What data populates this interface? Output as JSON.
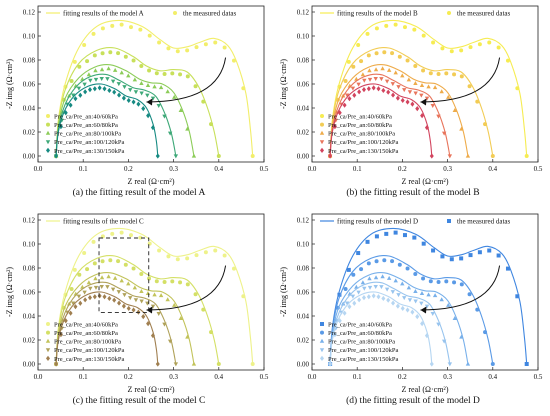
{
  "legend_labels": [
    "Pre_ca/Pre_an:40/60kPa",
    "Pre_ca/Pre_an:60/80kPa",
    "Pre_ca/Pre_an:80/100kPa",
    "Pre_ca/Pre_an:100/120kPa",
    "Pre_ca/Pre_an:130/150kPa"
  ],
  "chart_data": [
    {
      "type": "scatter",
      "caption": "(a) the fitting result of the model A",
      "fit_label": "fitting results of the model A",
      "meas_label": "the measured datas",
      "xlabel": "Z real (Ω·cm²)",
      "ylabel": "-Z img (Ω·cm²)",
      "xlim": [
        0,
        0.5
      ],
      "ylim": [
        -0.005,
        0.125
      ],
      "xticks": [
        0.0,
        0.1,
        0.2,
        0.3,
        0.4,
        0.5
      ],
      "yticks": [
        0.0,
        0.02,
        0.04,
        0.06,
        0.08,
        0.1,
        0.12
      ],
      "grid": false,
      "colors": [
        "#f2ee6a",
        "#c8e05a",
        "#8ccc58",
        "#3ea978",
        "#168a82"
      ],
      "markers": [
        "circle",
        "circle",
        "triangle-up",
        "triangle-down",
        "diamond"
      ]
    },
    {
      "type": "scatter",
      "caption": "(b) the fitting result of the model B",
      "fit_label": "fitting results of the model B",
      "meas_label": "the measured datas",
      "xlabel": "Z real (Ω·cm²)",
      "ylabel": "-Z img (Ω·cm²)",
      "xlim": [
        0,
        0.5
      ],
      "ylim": [
        -0.005,
        0.125
      ],
      "xticks": [
        0.0,
        0.1,
        0.2,
        0.3,
        0.4,
        0.5
      ],
      "yticks": [
        0.0,
        0.02,
        0.04,
        0.06,
        0.08,
        0.1,
        0.12
      ],
      "grid": false,
      "colors": [
        "#f6ec52",
        "#f2cc55",
        "#eeab4a",
        "#e8755c",
        "#d2445e"
      ],
      "markers": [
        "circle",
        "circle",
        "triangle-up",
        "triangle-down",
        "diamond"
      ]
    },
    {
      "type": "scatter",
      "caption": "(c) the fitting result of the model C",
      "fit_label": "fitting results of the model C",
      "meas_label": "",
      "xlabel": "Z real (Ω·cm²)",
      "ylabel": "-Z img (Ω·cm²)",
      "xlim": [
        0,
        0.5
      ],
      "ylim": [
        -0.005,
        0.125
      ],
      "xticks": [
        0.0,
        0.1,
        0.2,
        0.3,
        0.4,
        0.5
      ],
      "yticks": [
        0.0,
        0.02,
        0.04,
        0.06,
        0.08,
        0.1,
        0.12
      ],
      "grid": false,
      "colors": [
        "#eef28a",
        "#d4e066",
        "#c2c35a",
        "#b0a25a",
        "#a07f50"
      ],
      "markers": [
        "circle",
        "circle",
        "triangle-up",
        "triangle-down",
        "diamond"
      ],
      "highlight_box": {
        "x": [
          0.135,
          0.245
        ],
        "y": [
          0.043,
          0.105
        ]
      }
    },
    {
      "type": "scatter",
      "caption": "(d) the fitting result of the model D",
      "fit_label": "fitting results of the model D",
      "meas_label": "the measured datas",
      "xlabel": "Z real (Ω·cm²)",
      "ylabel": "-Z img (Ω·cm²)",
      "xlim": [
        0,
        0.5
      ],
      "ylim": [
        -0.005,
        0.125
      ],
      "xticks": [
        0.0,
        0.1,
        0.2,
        0.3,
        0.4,
        0.5
      ],
      "yticks": [
        0.0,
        0.02,
        0.04,
        0.06,
        0.08,
        0.1,
        0.12
      ],
      "grid": false,
      "colors": [
        "#3f86e0",
        "#5a9ae6",
        "#78b0ea",
        "#98c4ee",
        "#b6d6f2"
      ],
      "markers": [
        "square",
        "circle",
        "triangle-up",
        "triangle-down",
        "diamond"
      ]
    }
  ],
  "series": [
    {
      "x": [
        0.04,
        0.045,
        0.06,
        0.09,
        0.13,
        0.18,
        0.23,
        0.27,
        0.3,
        0.33,
        0.36,
        0.39,
        0.42,
        0.44,
        0.46,
        0.47,
        0.475
      ],
      "y": [
        0.0,
        0.03,
        0.06,
        0.09,
        0.108,
        0.113,
        0.108,
        0.097,
        0.09,
        0.091,
        0.095,
        0.098,
        0.092,
        0.078,
        0.052,
        0.022,
        0.0
      ]
    },
    {
      "x": [
        0.04,
        0.045,
        0.06,
        0.09,
        0.13,
        0.17,
        0.21,
        0.24,
        0.27,
        0.3,
        0.33,
        0.355,
        0.375,
        0.39,
        0.4
      ],
      "y": [
        0.0,
        0.028,
        0.055,
        0.077,
        0.088,
        0.09,
        0.083,
        0.075,
        0.071,
        0.072,
        0.07,
        0.058,
        0.04,
        0.02,
        0.0
      ]
    },
    {
      "x": [
        0.04,
        0.045,
        0.06,
        0.09,
        0.125,
        0.16,
        0.195,
        0.225,
        0.25,
        0.275,
        0.3,
        0.32,
        0.335,
        0.345
      ],
      "y": [
        0.0,
        0.025,
        0.048,
        0.065,
        0.074,
        0.076,
        0.071,
        0.064,
        0.061,
        0.06,
        0.053,
        0.038,
        0.02,
        0.0
      ]
    },
    {
      "x": [
        0.04,
        0.045,
        0.06,
        0.085,
        0.115,
        0.15,
        0.18,
        0.21,
        0.235,
        0.26,
        0.28,
        0.295,
        0.305
      ],
      "y": [
        0.0,
        0.022,
        0.043,
        0.058,
        0.066,
        0.068,
        0.063,
        0.057,
        0.055,
        0.05,
        0.036,
        0.019,
        0.0
      ]
    },
    {
      "x": [
        0.04,
        0.045,
        0.058,
        0.08,
        0.11,
        0.14,
        0.17,
        0.195,
        0.22,
        0.24,
        0.255,
        0.262,
        0.265
      ],
      "y": [
        0.0,
        0.02,
        0.037,
        0.05,
        0.058,
        0.06,
        0.056,
        0.05,
        0.047,
        0.04,
        0.026,
        0.012,
        0.0
      ]
    }
  ]
}
